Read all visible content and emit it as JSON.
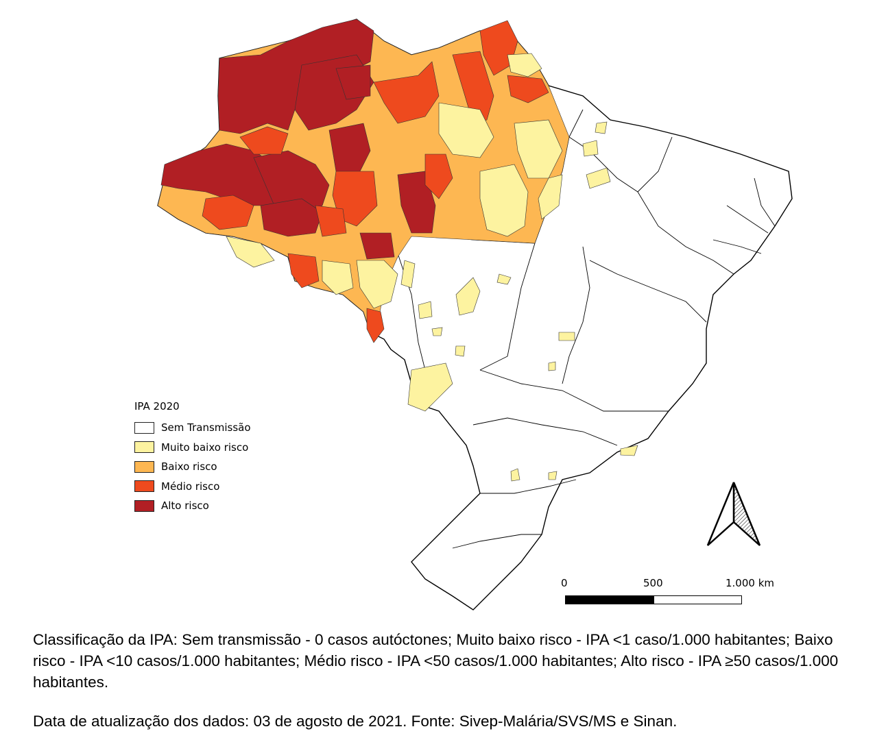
{
  "legend": {
    "title": "IPA 2020",
    "items": [
      {
        "label": "Sem Transmissão",
        "color": "#ffffff"
      },
      {
        "label": "Muito baixo risco",
        "color": "#fdf3a0"
      },
      {
        "label": "Baixo risco",
        "color": "#fdb752"
      },
      {
        "label": "Médio risco",
        "color": "#ee4a1e"
      },
      {
        "label": "Alto risco",
        "color": "#b11f24"
      }
    ]
  },
  "scale_bar": {
    "labels": [
      "0",
      "500",
      "1.000 km"
    ]
  },
  "caption": "Classificação da IPA: Sem transmissão - 0 casos autóctones; Muito baixo risco - IPA <1 caso/1.000 habitantes; Baixo risco - IPA <10 casos/1.000 habitantes; Médio risco - IPA <50 casos/1.000 habitantes; Alto risco - IPA ≥50 casos/1.000 habitantes.",
  "source": "Data de atualização dos dados: 03 de agosto de 2021. Fonte: Sivep-Malária/SVS/MS e Sinan."
}
